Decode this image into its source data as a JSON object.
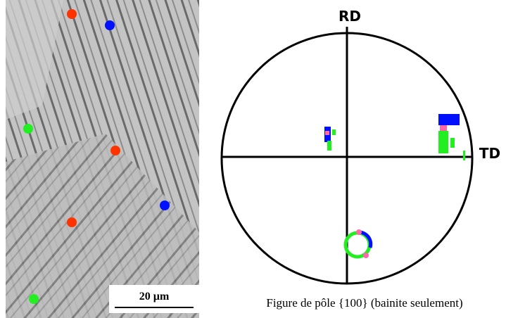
{
  "micrograph": {
    "scale_bar": "20 µm"
  },
  "pole_figure": {
    "axis_top": "RD",
    "axis_right": "TD",
    "caption": "Figure de pôle {100} (bainite seulement)"
  }
}
